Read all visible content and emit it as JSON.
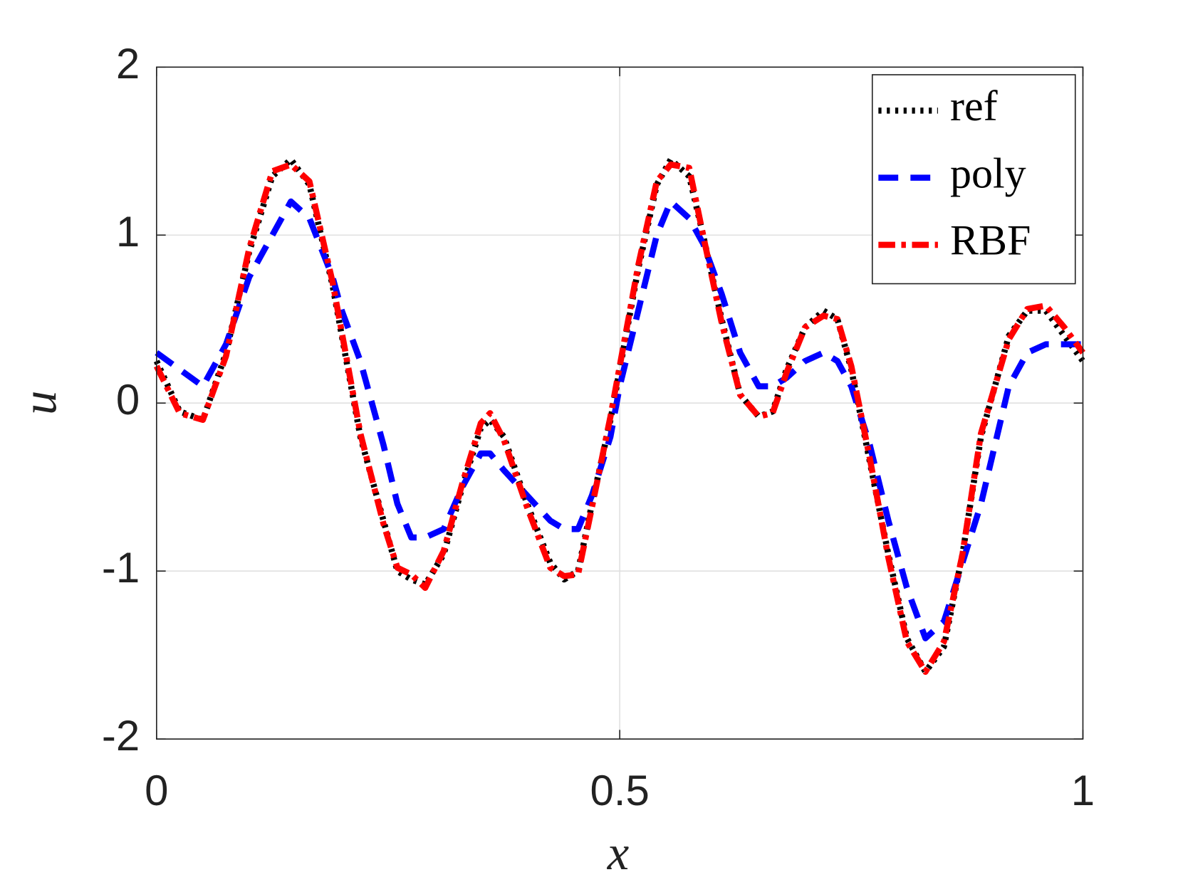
{
  "chart_data": {
    "type": "line",
    "xlabel": "x",
    "ylabel": "u",
    "x": [
      0,
      0.025,
      0.05,
      0.075,
      0.1,
      0.125,
      0.145,
      0.165,
      0.19,
      0.2,
      0.22,
      0.245,
      0.26,
      0.275,
      0.29,
      0.31,
      0.33,
      0.35,
      0.36,
      0.375,
      0.4,
      0.425,
      0.44,
      0.455,
      0.47,
      0.49,
      0.5,
      0.52,
      0.54,
      0.555,
      0.575,
      0.59,
      0.61,
      0.63,
      0.65,
      0.665,
      0.68,
      0.7,
      0.72,
      0.735,
      0.75,
      0.77,
      0.79,
      0.81,
      0.83,
      0.85,
      0.87,
      0.89,
      0.92,
      0.94,
      0.96,
      0.98,
      1
    ],
    "series": [
      {
        "name": "ref",
        "color": "#000000",
        "linestyle": "dotted",
        "values": [
          0.25,
          -0.05,
          -0.1,
          0.3,
          0.9,
          1.35,
          1.45,
          1.3,
          0.7,
          0.4,
          -0.2,
          -0.7,
          -1.0,
          -1.05,
          -1.08,
          -0.9,
          -0.5,
          -0.15,
          -0.1,
          -0.2,
          -0.6,
          -0.95,
          -1.05,
          -1.0,
          -0.6,
          -0.1,
          0.2,
          0.8,
          1.3,
          1.45,
          1.35,
          1.0,
          0.5,
          0.05,
          -0.08,
          -0.05,
          0.2,
          0.45,
          0.55,
          0.5,
          0.2,
          -0.35,
          -0.9,
          -1.4,
          -1.6,
          -1.45,
          -0.9,
          -0.2,
          0.4,
          0.55,
          0.55,
          0.4,
          0.25
        ]
      },
      {
        "name": "poly",
        "color": "#0000ff",
        "linestyle": "dashed",
        "values": [
          0.3,
          0.2,
          0.1,
          0.35,
          0.75,
          1.0,
          1.2,
          1.1,
          0.75,
          0.55,
          0.25,
          -0.25,
          -0.6,
          -0.8,
          -0.8,
          -0.75,
          -0.5,
          -0.3,
          -0.3,
          -0.4,
          -0.55,
          -0.7,
          -0.75,
          -0.75,
          -0.55,
          -0.2,
          0.1,
          0.55,
          1.0,
          1.2,
          1.1,
          0.95,
          0.65,
          0.3,
          0.1,
          0.1,
          0.15,
          0.25,
          0.3,
          0.25,
          0.1,
          -0.25,
          -0.7,
          -1.1,
          -1.4,
          -1.3,
          -0.95,
          -0.6,
          0.1,
          0.3,
          0.35,
          0.35,
          0.35
        ]
      },
      {
        "name": "RBF",
        "color": "#ff0000",
        "linestyle": "dashdot",
        "values": [
          0.22,
          -0.06,
          -0.1,
          0.28,
          0.92,
          1.38,
          1.42,
          1.32,
          0.72,
          0.42,
          -0.18,
          -0.72,
          -0.98,
          -1.02,
          -1.1,
          -0.88,
          -0.48,
          -0.12,
          -0.06,
          -0.22,
          -0.62,
          -0.98,
          -1.03,
          -1.02,
          -0.62,
          -0.08,
          0.22,
          0.82,
          1.32,
          1.42,
          1.4,
          1.0,
          0.48,
          0.05,
          -0.08,
          -0.06,
          0.18,
          0.45,
          0.52,
          0.5,
          0.22,
          -0.33,
          -0.92,
          -1.42,
          -1.6,
          -1.42,
          -0.9,
          -0.18,
          0.38,
          0.56,
          0.58,
          0.45,
          0.3
        ]
      }
    ],
    "xlim": [
      0,
      1
    ],
    "xticks": [
      0,
      0.5,
      1
    ],
    "ylim": [
      -2,
      2
    ],
    "yticks": [
      -2,
      -1,
      0,
      1,
      2
    ],
    "grid": true,
    "legend": "top-right"
  }
}
